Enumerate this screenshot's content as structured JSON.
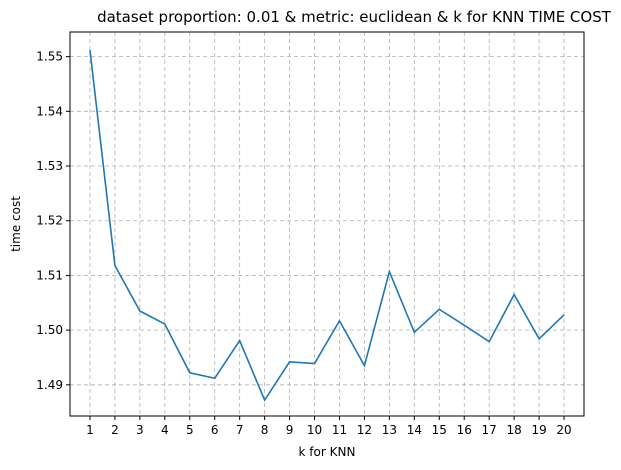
{
  "chart_data": {
    "type": "line",
    "title": "dataset proportion: 0.01 & metric: euclidean & k for KNN TIME COST",
    "xlabel": "k for KNN",
    "ylabel": "time cost",
    "x": [
      1,
      2,
      3,
      4,
      5,
      6,
      7,
      8,
      9,
      10,
      11,
      12,
      13,
      14,
      15,
      16,
      17,
      18,
      19,
      20
    ],
    "series": [
      {
        "values": [
          1.5512,
          1.5118,
          1.5035,
          1.5011,
          1.4922,
          1.4912,
          1.4981,
          1.4872,
          1.4942,
          1.4939,
          1.5017,
          1.4935,
          1.5107,
          1.4996,
          1.5038,
          1.5009,
          1.4979,
          1.5065,
          1.4984,
          1.5028
        ],
        "color": "#1f77b4"
      }
    ],
    "xlim": [
      0.2,
      20.8
    ],
    "ylim": [
      1.4843,
      1.5545
    ],
    "xticks": [
      "1",
      "2",
      "3",
      "4",
      "5",
      "6",
      "7",
      "8",
      "9",
      "10",
      "11",
      "12",
      "13",
      "14",
      "15",
      "16",
      "17",
      "18",
      "19",
      "20"
    ],
    "yticks": [
      "1.49",
      "1.50",
      "1.51",
      "1.52",
      "1.53",
      "1.54",
      "1.55"
    ],
    "grid": true
  }
}
